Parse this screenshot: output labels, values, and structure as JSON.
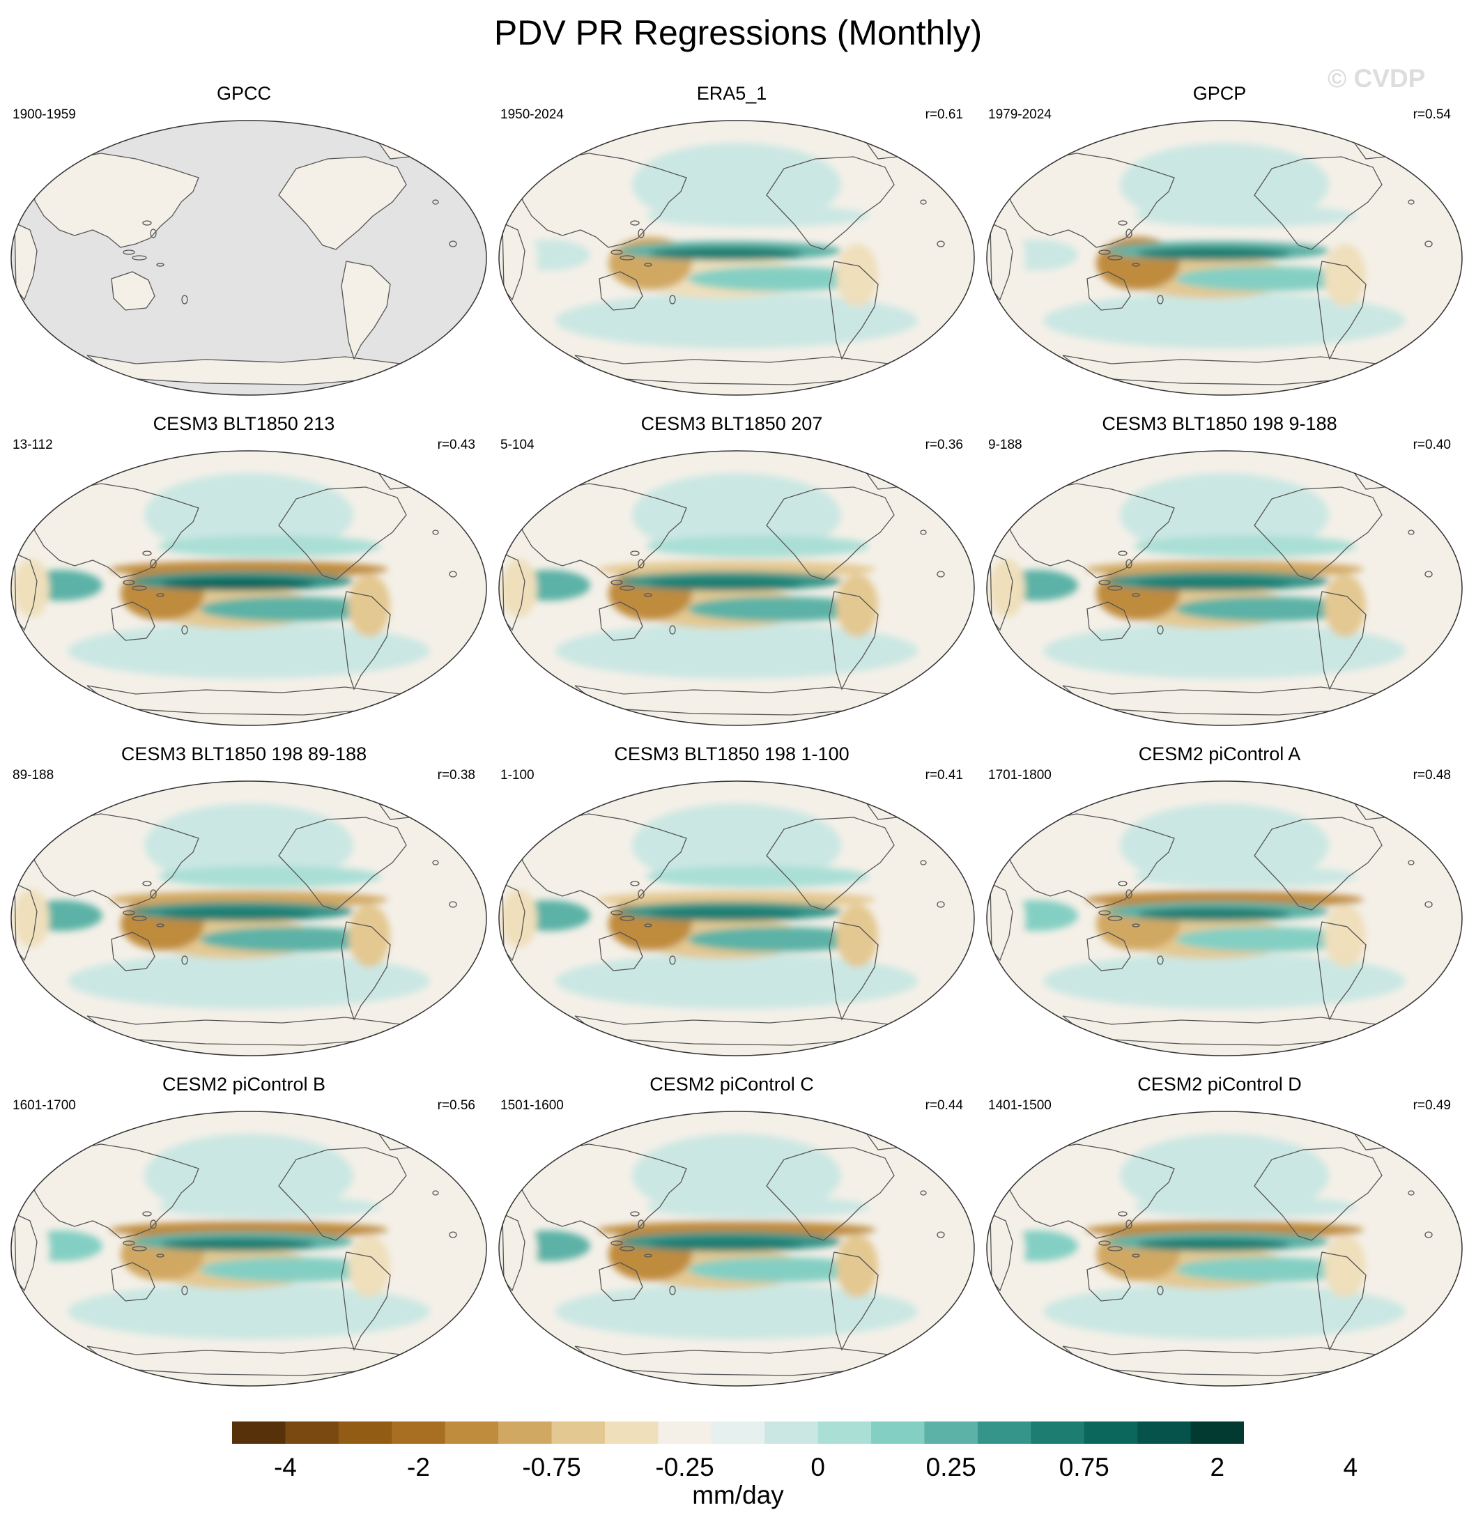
{
  "title": "PDV PR Regressions (Monthly)",
  "watermark": "© CVDP",
  "colors": {
    "land_mask": "#e3e3e3",
    "coastline": "#555555",
    "neutral": "#f4f0e8"
  },
  "chart_data": {
    "type": "heatmap",
    "projection": "Robinson (Pacific-centred)",
    "variable": "precipitation regression on PDV",
    "units": "mm/day",
    "colorbar": {
      "tick_labels": [
        "-4",
        "-2",
        "-0.75",
        "-0.25",
        "0",
        "0.25",
        "0.75",
        "2",
        "4"
      ],
      "colors": [
        "#573109",
        "#7a4811",
        "#935c14",
        "#a86f22",
        "#bf8b3d",
        "#d1a862",
        "#e4c891",
        "#efdfbb",
        "#f4f0e8",
        "#e6f0ee",
        "#cbe7e3",
        "#aadfd6",
        "#84cfc3",
        "#5cb2a6",
        "#35958a",
        "#1d7d71",
        "#0b665b",
        "#05534a",
        "#023a32"
      ]
    },
    "panels": [
      {
        "title": "GPCC",
        "years": "1900-1959",
        "r": "",
        "land_only": true,
        "pacific_eq": 0.0,
        "offeq_dipole": 0.0,
        "indian_ocean": 0.0,
        "maritime": -0.2,
        "south_pacific_band": 0.0
      },
      {
        "title": "ERA5_1",
        "years": "1950-2024",
        "r": "r=0.61",
        "land_only": false,
        "pacific_eq": 2.2,
        "offeq_dipole": 0.0,
        "indian_ocean": 0.2,
        "maritime": -0.9,
        "south_pacific_band": -0.5
      },
      {
        "title": "GPCP",
        "years": "1979-2024",
        "r": "r=0.54",
        "land_only": false,
        "pacific_eq": 2.0,
        "offeq_dipole": 0.0,
        "indian_ocean": 0.2,
        "maritime": -1.1,
        "south_pacific_band": -0.6
      },
      {
        "title": "CESM3 BLT1850 213",
        "years": "13-112",
        "r": "r=0.43",
        "land_only": false,
        "pacific_eq": 3.0,
        "offeq_dipole": -1.2,
        "indian_ocean": 0.8,
        "maritime": -1.6,
        "south_pacific_band": -0.7
      },
      {
        "title": "CESM3 BLT1850 207",
        "years": "5-104",
        "r": "r=0.36",
        "land_only": false,
        "pacific_eq": 2.6,
        "offeq_dipole": -0.6,
        "indian_ocean": 0.8,
        "maritime": -1.4,
        "south_pacific_band": -0.6
      },
      {
        "title": "CESM3 BLT1850 198 9-188",
        "years": "9-188",
        "r": "r=0.40",
        "land_only": false,
        "pacific_eq": 2.8,
        "offeq_dipole": -0.8,
        "indian_ocean": 0.8,
        "maritime": -1.6,
        "south_pacific_band": -0.7
      },
      {
        "title": "CESM3 BLT1850 198 89-188",
        "years": "89-188",
        "r": "r=0.38",
        "land_only": false,
        "pacific_eq": 2.6,
        "offeq_dipole": -1.0,
        "indian_ocean": 0.9,
        "maritime": -1.6,
        "south_pacific_band": -0.6
      },
      {
        "title": "CESM3 BLT1850 198 1-100",
        "years": "1-100",
        "r": "r=0.41",
        "land_only": false,
        "pacific_eq": 2.8,
        "offeq_dipole": -0.7,
        "indian_ocean": 0.8,
        "maritime": -1.4,
        "south_pacific_band": -0.6
      },
      {
        "title": "CESM2 piControl A",
        "years": "1701-1800",
        "r": "r=0.48",
        "land_only": false,
        "pacific_eq": 2.0,
        "offeq_dipole": -1.5,
        "indian_ocean": 0.7,
        "maritime": -0.8,
        "south_pacific_band": -0.7
      },
      {
        "title": "CESM2 piControl B",
        "years": "1601-1700",
        "r": "r=0.56",
        "land_only": false,
        "pacific_eq": 2.2,
        "offeq_dipole": -1.8,
        "indian_ocean": 0.7,
        "maritime": -1.0,
        "south_pacific_band": -0.6
      },
      {
        "title": "CESM2 piControl C",
        "years": "1501-1600",
        "r": "r=0.44",
        "land_only": false,
        "pacific_eq": 2.4,
        "offeq_dipole": -1.6,
        "indian_ocean": 0.8,
        "maritime": -1.2,
        "south_pacific_band": -0.6
      },
      {
        "title": "CESM2 piControl D",
        "years": "1401-1500",
        "r": "r=0.49",
        "land_only": false,
        "pacific_eq": 2.2,
        "offeq_dipole": -1.6,
        "indian_ocean": 0.7,
        "maritime": -1.0,
        "south_pacific_band": -0.6
      }
    ]
  }
}
